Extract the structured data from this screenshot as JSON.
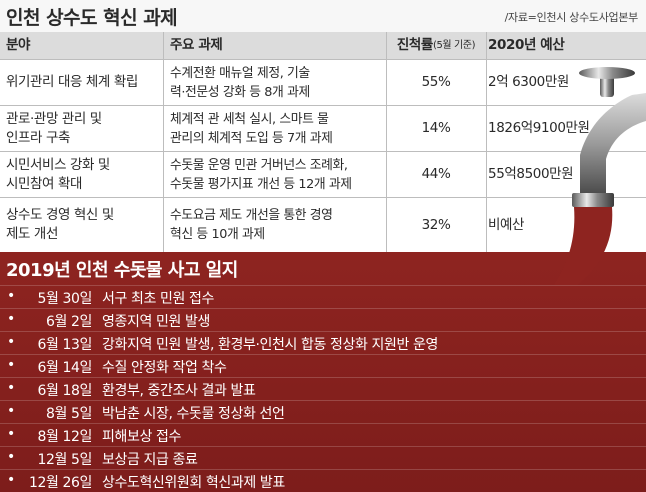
{
  "header": {
    "title": "인천 상수도 혁신 과제",
    "source": "/자료=인천시 상수도사업본부"
  },
  "table": {
    "columns": {
      "area": "분야",
      "task": "주요 과제",
      "progress": "진척률",
      "progress_note": "(5월 기준)",
      "budget": "2020년 예산"
    },
    "rows": [
      {
        "area": "위기관리 대응 체계 확립",
        "task_line1": "수계전환 매뉴얼 제정, 기술",
        "task_line2": "력·전문성 강화 등 8개 과제",
        "progress": "55%",
        "budget": "2억 6300만원"
      },
      {
        "area_line1": "관로·관망 관리 및",
        "area_line2": "인프라 구축",
        "task_line1": "체계적 관 세척 실시, 스마트 물",
        "task_line2": "관리의 체계적 도입 등 7개 과제",
        "progress": "14%",
        "budget": "1826억9100만원"
      },
      {
        "area_line1": "시민서비스 강화 및",
        "area_line2": "시민참여 확대",
        "task_line1": "수돗물 운영 민관 거버넌스 조례화,",
        "task_line2": "수돗물 평가지표 개선 등 12개 과제",
        "progress": "44%",
        "budget": "55억8500만원"
      },
      {
        "area_line1": "상수도 경영 혁신 및",
        "area_line2": "제도 개선",
        "task_line1": "수도요금 제도 개선을 통한 경영",
        "task_line2": "혁신 등 10개 과제",
        "progress": "32%",
        "budget": "비예산"
      }
    ]
  },
  "log": {
    "title": "2019년 인천 수돗물 사고 일지",
    "items": [
      {
        "date": "5월 30일",
        "event": "서구 최초 민원 접수"
      },
      {
        "date": "6월 2일",
        "event": "영종지역 민원 발생"
      },
      {
        "date": "6월 13일",
        "event": "강화지역 민원 발생, 환경부·인천시 합동 정상화 지원반 운영"
      },
      {
        "date": "6월 14일",
        "event": "수질 안정화 작업 착수"
      },
      {
        "date": "6월 18일",
        "event": "환경부, 중간조사 결과 발표"
      },
      {
        "date": "8월 5일",
        "event": "박남춘 시장, 수돗물 정상화 선언"
      },
      {
        "date": "8월 12일",
        "event": "피해보상 접수"
      },
      {
        "date": "12월 5일",
        "event": "보상금 지급 종료"
      },
      {
        "date": "12월 26일",
        "event": "상수도혁신위원회 혁신과제 발표"
      }
    ],
    "bullet": "•"
  },
  "colors": {
    "log_background": "#8e2420",
    "header_row": "#dcdcdc"
  },
  "icons": {
    "illustration": "faucet-icon"
  }
}
